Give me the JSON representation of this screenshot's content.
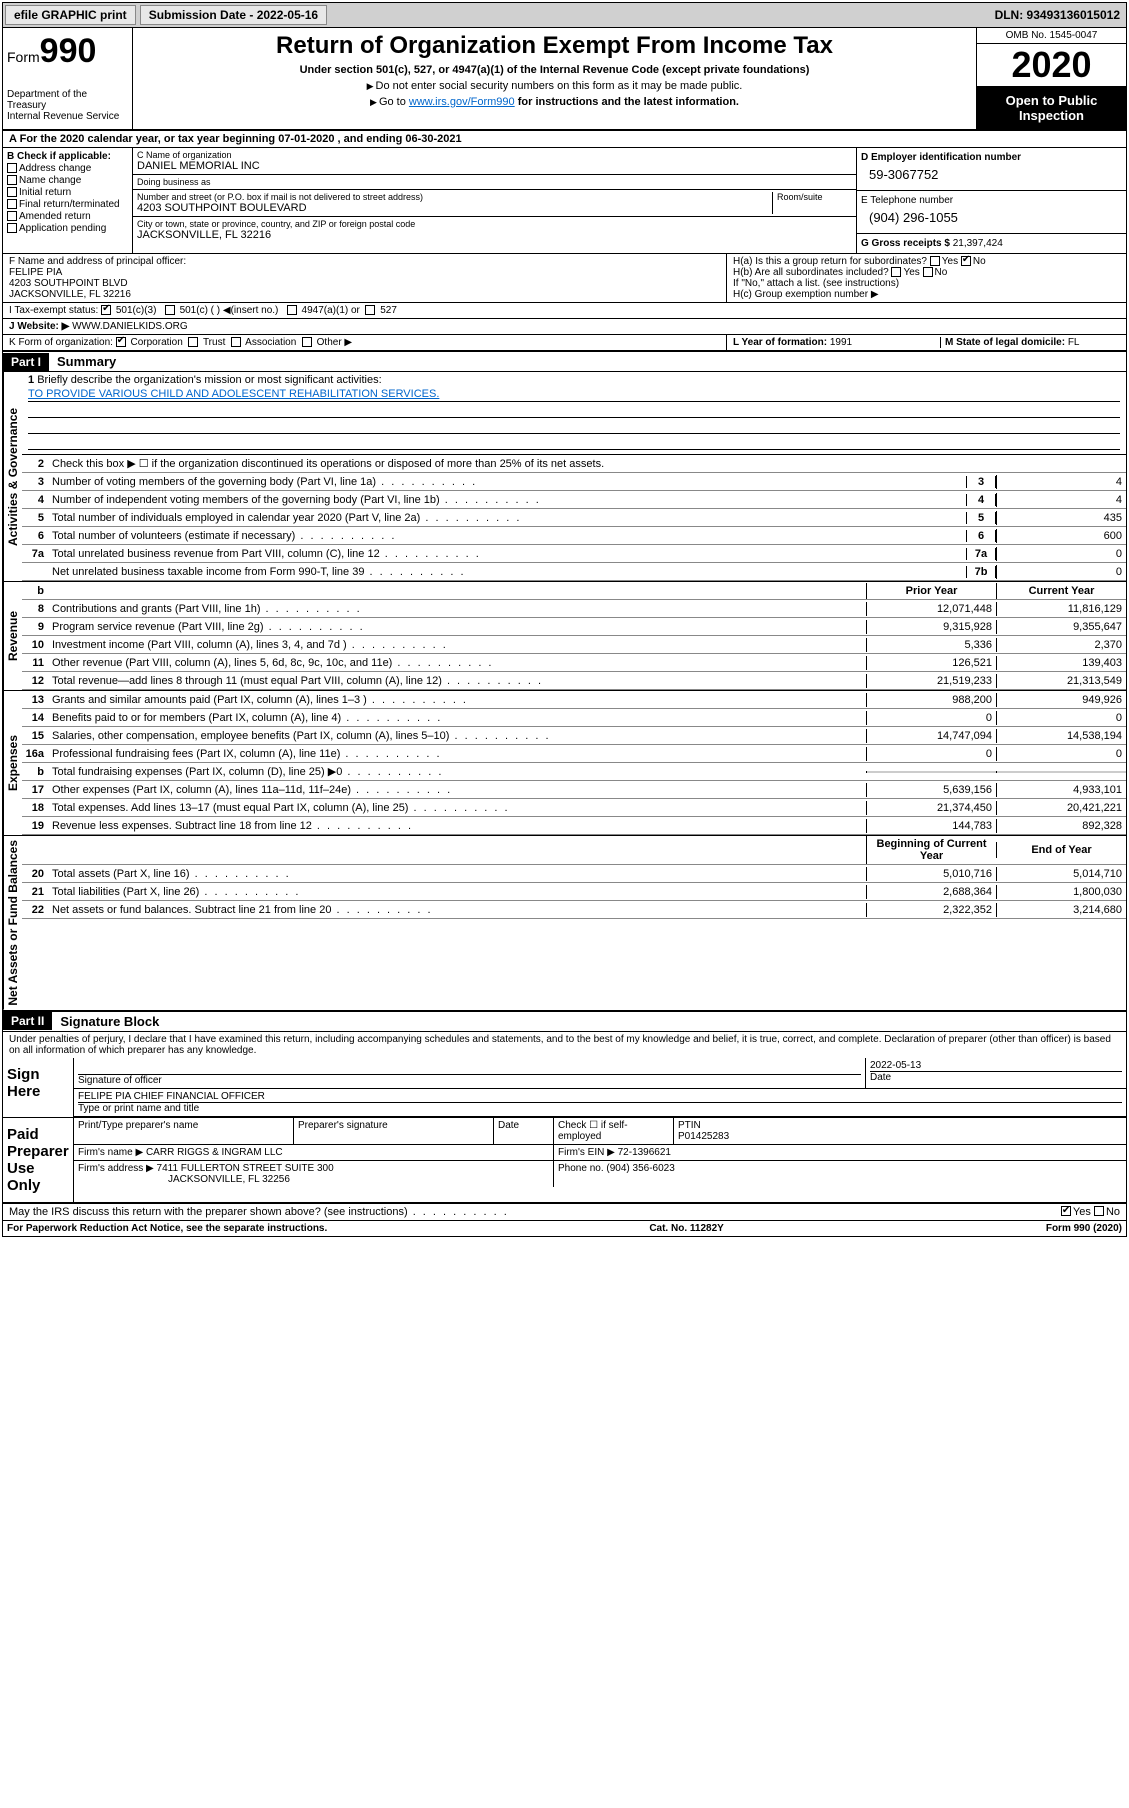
{
  "topbar": {
    "efile": "efile GRAPHIC print",
    "sub_label": "Submission Date - 2022-05-16",
    "dln": "DLN: 93493136015012"
  },
  "header": {
    "form_prefix": "Form",
    "form_num": "990",
    "dept": "Department of the Treasury\nInternal Revenue Service",
    "title": "Return of Organization Exempt From Income Tax",
    "subtitle": "Under section 501(c), 527, or 4947(a)(1) of the Internal Revenue Code (except private foundations)",
    "note1": "Do not enter social security numbers on this form as it may be made public.",
    "note2_pre": "Go to ",
    "note2_link": "www.irs.gov/Form990",
    "note2_post": " for instructions and the latest information.",
    "omb": "OMB No. 1545-0047",
    "year": "2020",
    "inspect": "Open to Public Inspection"
  },
  "period": "For the 2020 calendar year, or tax year beginning 07-01-2020   , and ending 06-30-2021",
  "section_b": {
    "label": "B Check if applicable:",
    "items": [
      "Address change",
      "Name change",
      "Initial return",
      "Final return/terminated",
      "Amended return",
      "Application pending"
    ]
  },
  "org": {
    "c_label": "C Name of organization",
    "name": "DANIEL MEMORIAL INC",
    "dba_label": "Doing business as",
    "dba": "",
    "addr_label": "Number and street (or P.O. box if mail is not delivered to street address)",
    "room_label": "Room/suite",
    "addr": "4203 SOUTHPOINT BOULEVARD",
    "city_label": "City or town, state or province, country, and ZIP or foreign postal code",
    "city": "JACKSONVILLE, FL  32216"
  },
  "d_block": {
    "label": "D Employer identification number",
    "ein": "59-3067752",
    "e_label": "E Telephone number",
    "phone": "(904) 296-1055",
    "g_label": "G Gross receipts $",
    "gross": "21,397,424"
  },
  "f_block": {
    "label": "F  Name and address of principal officer:",
    "name": "FELIPE PIA",
    "addr1": "4203 SOUTHPOINT BLVD",
    "addr2": "JACKSONVILLE, FL  32216"
  },
  "h_block": {
    "ha": "H(a)  Is this a group return for subordinates?",
    "hb": "H(b)  Are all subordinates included?",
    "hb_note": "If \"No,\" attach a list. (see instructions)",
    "hc": "H(c)  Group exemption number ▶",
    "yes": "Yes",
    "no": "No"
  },
  "tax_status": {
    "label": "I  Tax-exempt status:",
    "501c3": "501(c)(3)",
    "501c": "501(c) (  ) ◀(insert no.)",
    "4947": "4947(a)(1) or",
    "527": "527"
  },
  "website": {
    "label": "J  Website: ▶",
    "val": "WWW.DANIELKIDS.ORG"
  },
  "k_block": {
    "label": "K Form of organization:",
    "corp": "Corporation",
    "trust": "Trust",
    "assoc": "Association",
    "other": "Other ▶",
    "l_label": "L Year of formation:",
    "l_val": "1991",
    "m_label": "M State of legal domicile:",
    "m_val": "FL"
  },
  "part1": {
    "hdr": "Part I",
    "title": "Summary",
    "q1": "Briefly describe the organization's mission or most significant activities:",
    "mission": "TO PROVIDE VARIOUS CHILD AND ADOLESCENT REHABILITATION SERVICES.",
    "q2": "Check this box ▶ ☐  if the organization discontinued its operations or disposed of more than 25% of its net assets.",
    "sections": {
      "gov": "Activities & Governance",
      "rev": "Revenue",
      "exp": "Expenses",
      "net": "Net Assets or Fund Balances"
    },
    "lines_single": [
      {
        "n": "3",
        "d": "Number of voting members of the governing body (Part VI, line 1a)",
        "b": "3",
        "v": "4"
      },
      {
        "n": "4",
        "d": "Number of independent voting members of the governing body (Part VI, line 1b)",
        "b": "4",
        "v": "4"
      },
      {
        "n": "5",
        "d": "Total number of individuals employed in calendar year 2020 (Part V, line 2a)",
        "b": "5",
        "v": "435"
      },
      {
        "n": "6",
        "d": "Total number of volunteers (estimate if necessary)",
        "b": "6",
        "v": "600"
      },
      {
        "n": "7a",
        "d": "Total unrelated business revenue from Part VIII, column (C), line 12",
        "b": "7a",
        "v": "0"
      },
      {
        "n": "",
        "d": "Net unrelated business taxable income from Form 990-T, line 39",
        "b": "7b",
        "v": "0"
      }
    ],
    "col_hdr": {
      "b": "b",
      "prior": "Prior Year",
      "current": "Current Year"
    },
    "lines_rev": [
      {
        "n": "8",
        "d": "Contributions and grants (Part VIII, line 1h)",
        "p": "12,071,448",
        "c": "11,816,129"
      },
      {
        "n": "9",
        "d": "Program service revenue (Part VIII, line 2g)",
        "p": "9,315,928",
        "c": "9,355,647"
      },
      {
        "n": "10",
        "d": "Investment income (Part VIII, column (A), lines 3, 4, and 7d )",
        "p": "5,336",
        "c": "2,370"
      },
      {
        "n": "11",
        "d": "Other revenue (Part VIII, column (A), lines 5, 6d, 8c, 9c, 10c, and 11e)",
        "p": "126,521",
        "c": "139,403"
      },
      {
        "n": "12",
        "d": "Total revenue—add lines 8 through 11 (must equal Part VIII, column (A), line 12)",
        "p": "21,519,233",
        "c": "21,313,549"
      }
    ],
    "lines_exp": [
      {
        "n": "13",
        "d": "Grants and similar amounts paid (Part IX, column (A), lines 1–3 )",
        "p": "988,200",
        "c": "949,926"
      },
      {
        "n": "14",
        "d": "Benefits paid to or for members (Part IX, column (A), line 4)",
        "p": "0",
        "c": "0"
      },
      {
        "n": "15",
        "d": "Salaries, other compensation, employee benefits (Part IX, column (A), lines 5–10)",
        "p": "14,747,094",
        "c": "14,538,194"
      },
      {
        "n": "16a",
        "d": "Professional fundraising fees (Part IX, column (A), line 11e)",
        "p": "0",
        "c": "0"
      },
      {
        "n": "b",
        "d": "Total fundraising expenses (Part IX, column (D), line 25) ▶0",
        "p": "",
        "c": "",
        "shade": true
      },
      {
        "n": "17",
        "d": "Other expenses (Part IX, column (A), lines 11a–11d, 11f–24e)",
        "p": "5,639,156",
        "c": "4,933,101"
      },
      {
        "n": "18",
        "d": "Total expenses. Add lines 13–17 (must equal Part IX, column (A), line 25)",
        "p": "21,374,450",
        "c": "20,421,221"
      },
      {
        "n": "19",
        "d": "Revenue less expenses. Subtract line 18 from line 12",
        "p": "144,783",
        "c": "892,328"
      }
    ],
    "net_hdr": {
      "begin": "Beginning of Current Year",
      "end": "End of Year"
    },
    "lines_net": [
      {
        "n": "20",
        "d": "Total assets (Part X, line 16)",
        "p": "5,010,716",
        "c": "5,014,710"
      },
      {
        "n": "21",
        "d": "Total liabilities (Part X, line 26)",
        "p": "2,688,364",
        "c": "1,800,030"
      },
      {
        "n": "22",
        "d": "Net assets or fund balances. Subtract line 21 from line 20",
        "p": "2,322,352",
        "c": "3,214,680"
      }
    ]
  },
  "part2": {
    "hdr": "Part II",
    "title": "Signature Block",
    "decl": "Under penalties of perjury, I declare that I have examined this return, including accompanying schedules and statements, and to the best of my knowledge and belief, it is true, correct, and complete. Declaration of preparer (other than officer) is based on all information of which preparer has any knowledge.",
    "sign_here": "Sign Here",
    "sig_officer": "Signature of officer",
    "sig_date": "2022-05-13",
    "date_lbl": "Date",
    "officer_name": "FELIPE PIA  CHIEF FINANCIAL OFFICER",
    "type_name": "Type or print name and title",
    "paid_prep": "Paid Preparer Use Only",
    "print_name_lbl": "Print/Type preparer's name",
    "prep_sig_lbl": "Preparer's signature",
    "check_self": "Check ☐ if self-employed",
    "ptin_lbl": "PTIN",
    "ptin": "P01425283",
    "firm_name_lbl": "Firm's name    ▶",
    "firm_name": "CARR RIGGS & INGRAM LLC",
    "firm_ein_lbl": "Firm's EIN ▶",
    "firm_ein": "72-1396621",
    "firm_addr_lbl": "Firm's address ▶",
    "firm_addr1": "7411 FULLERTON STREET SUITE 300",
    "firm_addr2": "JACKSONVILLE, FL  32256",
    "phone_lbl": "Phone no.",
    "phone": "(904) 356-6023",
    "discuss": "May the IRS discuss this return with the preparer shown above? (see instructions)"
  },
  "footer": {
    "left": "For Paperwork Reduction Act Notice, see the separate instructions.",
    "mid": "Cat. No. 11282Y",
    "right": "Form 990 (2020)"
  }
}
